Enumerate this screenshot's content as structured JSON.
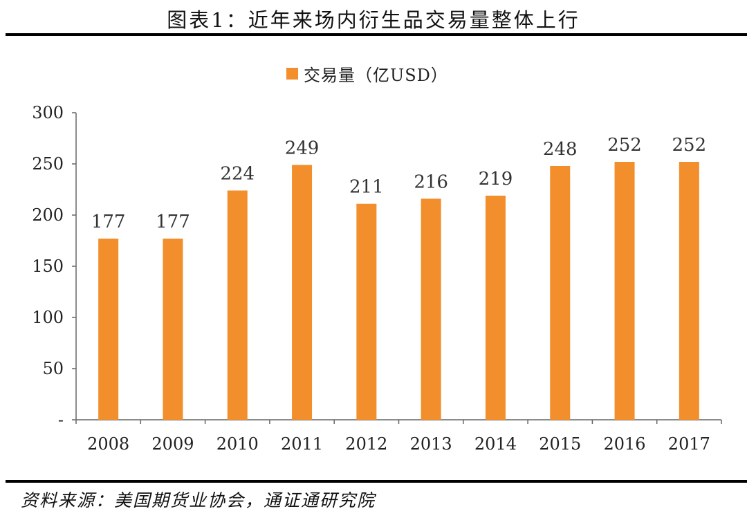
{
  "title": "图表1：近年来场内衍生品交易量整体上行",
  "source": "资料来源：美国期货业协会，通证通研究院",
  "colors": {
    "bar": "#f28e2b",
    "axis": "#666666"
  },
  "chart_data": {
    "type": "bar",
    "categories": [
      "2008",
      "2009",
      "2010",
      "2011",
      "2012",
      "2013",
      "2014",
      "2015",
      "2016",
      "2017"
    ],
    "series": [
      {
        "name": "交易量（亿USD）",
        "values": [
          177,
          177,
          224,
          249,
          211,
          216,
          219,
          248,
          252,
          252
        ]
      }
    ],
    "ylim": [
      0,
      300
    ],
    "yticks": [
      0,
      50,
      100,
      150,
      200,
      250,
      300
    ],
    "ytick_labels": [
      "-",
      "50",
      "100",
      "150",
      "200",
      "250",
      "300"
    ],
    "legend": "top-center",
    "grid": false,
    "data_labels": true
  }
}
